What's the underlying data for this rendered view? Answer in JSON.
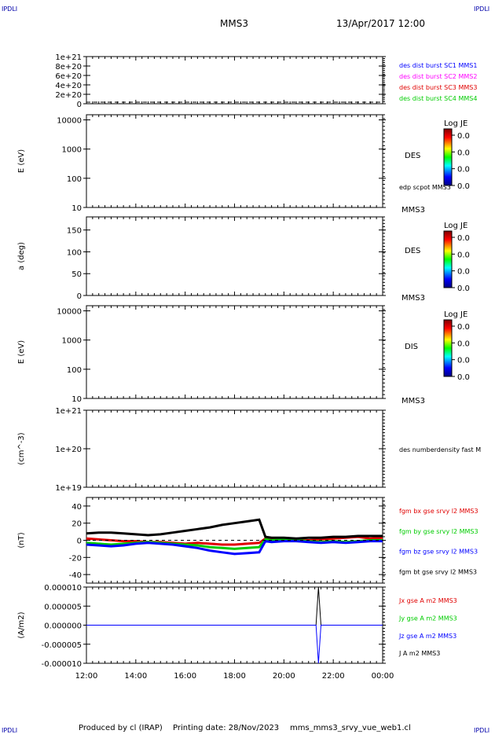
{
  "header": {
    "corner_left": "IPDLI",
    "corner_right": "IPDLI",
    "corner_bottom_left": "IPDLI",
    "corner_bottom_right": "IPDLI",
    "spacecraft": "MMS3",
    "datetime": "13/Apr/2017 12:00"
  },
  "footer": {
    "produced_by": "Produced by cl (IRAP)",
    "printing_date": "Printing date: 28/Nov/2023",
    "filename": "mms_mms3_srvy_vue_web1.cl"
  },
  "colors": {
    "black": "#000000",
    "blue": "#0000ff",
    "magenta": "#ff00ff",
    "red": "#e00000",
    "green": "#00cc00"
  },
  "chart_data": [
    {
      "id": "p1",
      "type": "line",
      "yticks": [
        "1e+21",
        "8e+20",
        "6e+20",
        "4e+20",
        "2e+20",
        "0"
      ],
      "ylim": [
        0,
        1e+21
      ],
      "legend": [
        {
          "text": "des dist burst SC1 MMS1",
          "color": "#0000ff"
        },
        {
          "text": "des dist burst SC2 MMS2",
          "color": "#ff00ff"
        },
        {
          "text": "des dist burst SC3 MMS3",
          "color": "#e00000"
        },
        {
          "text": "des dist burst SC4 MMS4",
          "color": "#00cc00"
        }
      ],
      "series": [
        {
          "values": [
            0,
            0
          ]
        }
      ]
    },
    {
      "id": "p2",
      "type": "heatmap",
      "ylabel": "E (eV)",
      "yscale": "log",
      "ylim": [
        10,
        15000
      ],
      "yticks": [
        "10000",
        "1000",
        "100",
        "10"
      ],
      "label": "DES",
      "sublabel": "edp scpot MMS3",
      "sc": "MMS3",
      "colorbar": {
        "title": "Log JE",
        "ticks": [
          "0.0",
          "0.0",
          "0.0",
          "0.0"
        ]
      }
    },
    {
      "id": "p3",
      "type": "heatmap",
      "ylabel": "a (deg)",
      "ylim": [
        0,
        180
      ],
      "yticks": [
        "150",
        "100",
        "50",
        "0"
      ],
      "label": "DES",
      "sc": "MMS3",
      "colorbar": {
        "title": "Log JE",
        "ticks": [
          "0.0",
          "0.0",
          "0.0",
          "0.0"
        ]
      }
    },
    {
      "id": "p4",
      "type": "heatmap",
      "ylabel": "E (eV)",
      "yscale": "log",
      "ylim": [
        10,
        15000
      ],
      "yticks": [
        "10000",
        "1000",
        "100",
        "10"
      ],
      "label": "DIS",
      "sc": "MMS3",
      "colorbar": {
        "title": "Log JE",
        "ticks": [
          "0.0",
          "0.0",
          "0.0",
          "0.0"
        ]
      }
    },
    {
      "id": "p5",
      "type": "line",
      "ylabel": "(cm^-3)",
      "yscale": "log",
      "ylim": [
        1e+19,
        1e+21
      ],
      "yticks": [
        "1e+21",
        "1e+20",
        "1e+19"
      ],
      "legend": [
        {
          "text": "des numberdensity fast M",
          "color": "#000000"
        }
      ]
    },
    {
      "id": "p6",
      "type": "line",
      "ylabel": "(nT)",
      "ylim": [
        -50,
        50
      ],
      "yticks": [
        "40",
        "20",
        "0",
        "-20",
        "-40"
      ],
      "legend": [
        {
          "text": "fgm bx gse srvy l2 MMS3",
          "color": "#e00000"
        },
        {
          "text": "fgm by gse srvy l2 MMS3",
          "color": "#00cc00"
        },
        {
          "text": "fgm bz gse srvy l2 MMS3",
          "color": "#0000ff"
        },
        {
          "text": "fgm bt gse srvy l2 MMS3",
          "color": "#000000"
        }
      ],
      "series": [
        {
          "color": "#e00000",
          "x": [
            0,
            0.5,
            1,
            1.5,
            2,
            2.5,
            3,
            3.5,
            4,
            4.5,
            5,
            5.5,
            6,
            6.5,
            7,
            7.25,
            7.5,
            8,
            8.5,
            9,
            9.5,
            10,
            10.5,
            11,
            11.5,
            12
          ],
          "values": [
            2,
            1,
            0,
            -1,
            -1,
            -2,
            -2,
            -3,
            -4,
            -3,
            -4,
            -5,
            -5,
            -4,
            -3,
            2,
            1,
            1,
            0,
            0,
            1,
            2,
            3,
            4,
            2,
            3
          ]
        },
        {
          "color": "#00cc00",
          "x": [
            0,
            0.5,
            1,
            1.5,
            2,
            2.5,
            3,
            3.5,
            4,
            4.5,
            5,
            5.5,
            6,
            6.5,
            7,
            7.25,
            7.5,
            8,
            8.5,
            9,
            9.5,
            10,
            10.5,
            11,
            11.5,
            12
          ],
          "values": [
            -3,
            -4,
            -5,
            -4,
            -3,
            -2,
            -3,
            -4,
            -5,
            -6,
            -8,
            -9,
            -10,
            -9,
            -8,
            1,
            0,
            1,
            0,
            -1,
            -2,
            -1,
            -2,
            -1,
            0,
            0
          ]
        },
        {
          "color": "#0000ff",
          "x": [
            0,
            0.5,
            1,
            1.5,
            2,
            2.5,
            3,
            3.5,
            4,
            4.5,
            5,
            5.5,
            6,
            6.5,
            7,
            7.25,
            7.5,
            8,
            8.5,
            9,
            9.5,
            10,
            10.5,
            11,
            11.5,
            12
          ],
          "values": [
            -5,
            -6,
            -7,
            -6,
            -4,
            -3,
            -4,
            -5,
            -7,
            -9,
            -12,
            -14,
            -16,
            -15,
            -14,
            -1,
            -2,
            -1,
            -1,
            -2,
            -3,
            -2,
            -3,
            -2,
            -1,
            -1
          ]
        },
        {
          "color": "#000000",
          "x": [
            0,
            0.5,
            1,
            1.5,
            2,
            2.5,
            3,
            3.5,
            4,
            4.5,
            5,
            5.5,
            6,
            6.5,
            7,
            7.25,
            7.5,
            8,
            8.5,
            9,
            9.5,
            10,
            10.5,
            11,
            11.5,
            12
          ],
          "values": [
            8,
            9,
            9,
            8,
            7,
            6,
            7,
            9,
            11,
            13,
            15,
            18,
            20,
            22,
            24,
            4,
            3,
            3,
            2,
            3,
            3,
            4,
            4,
            5,
            5,
            5
          ]
        }
      ]
    },
    {
      "id": "p7",
      "type": "line",
      "ylabel": "(A/m2)",
      "ylim": [
        -1e-05,
        1e-05
      ],
      "yticks": [
        "0.000010",
        "0.000005",
        "0.000000",
        "-0.000005",
        "-0.000010"
      ],
      "legend": [
        {
          "text": "Jx gse A m2 MMS3",
          "color": "#e00000"
        },
        {
          "text": "Jy gse A m2 MMS3",
          "color": "#00cc00"
        },
        {
          "text": "Jz gse A m2 MMS3",
          "color": "#0000ff"
        },
        {
          "text": "J A m2 MMS3",
          "color": "#000000"
        }
      ],
      "series": [
        {
          "color": "#000000",
          "x": [
            0,
            9.3,
            9.4,
            9.5,
            12
          ],
          "values": [
            0,
            0,
            1e-05,
            0,
            0
          ]
        },
        {
          "color": "#0000ff",
          "x": [
            0,
            9.3,
            9.4,
            9.5,
            12
          ],
          "values": [
            0,
            0,
            -1e-05,
            0,
            0
          ]
        }
      ]
    }
  ],
  "xaxis": {
    "ticks": [
      "12:00",
      "14:00",
      "16:00",
      "18:00",
      "20:00",
      "22:00",
      "00:00"
    ],
    "xlim": [
      "12:00",
      "00:00"
    ]
  }
}
